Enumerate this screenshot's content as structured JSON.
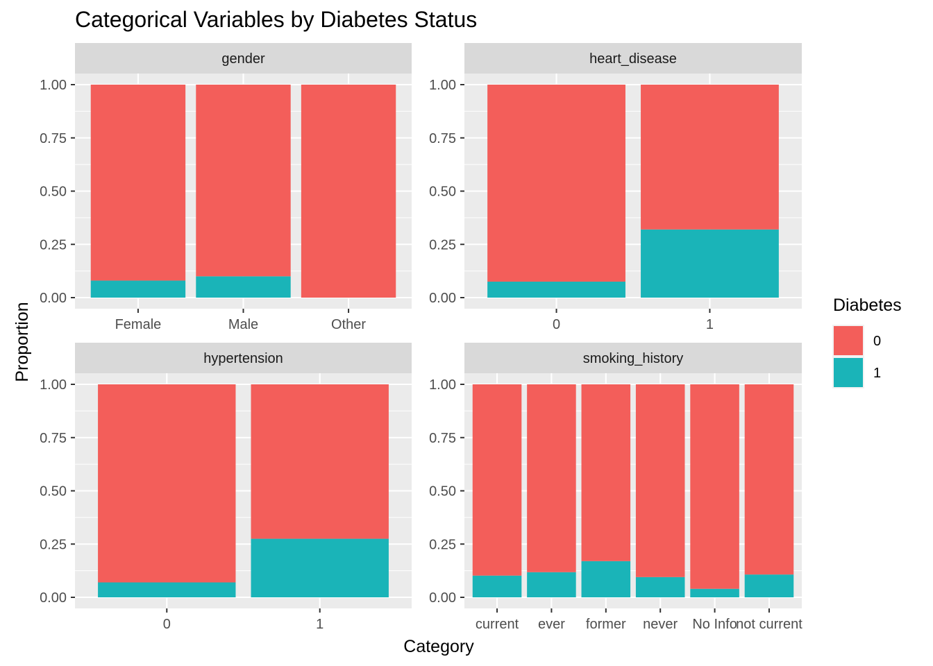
{
  "colors": {
    "0": "#F35E5A",
    "1": "#1AB4B8"
  },
  "chart_data": {
    "type": "bar",
    "stacked": "fill",
    "title": "Categorical Variables by Diabetes Status",
    "xlabel": "Category",
    "ylabel": "Proportion",
    "ylim": [
      0,
      1
    ],
    "yticks": [
      "0.00",
      "0.25",
      "0.50",
      "0.75",
      "1.00"
    ],
    "grid": true,
    "legend": {
      "title": "Diabetes",
      "placement": "right",
      "entries": [
        "0",
        "1"
      ]
    },
    "panels": [
      {
        "facet": "gender",
        "categories": [
          "Female",
          "Male",
          "Other"
        ],
        "series": [
          {
            "name": "0",
            "values": [
              0.92,
              0.9,
              1.0
            ]
          },
          {
            "name": "1",
            "values": [
              0.08,
              0.1,
              0.0
            ]
          }
        ]
      },
      {
        "facet": "heart_disease",
        "categories": [
          "0",
          "1"
        ],
        "series": [
          {
            "name": "0",
            "values": [
              0.925,
              0.68
            ]
          },
          {
            "name": "1",
            "values": [
              0.075,
              0.32
            ]
          }
        ]
      },
      {
        "facet": "hypertension",
        "categories": [
          "0",
          "1"
        ],
        "series": [
          {
            "name": "0",
            "values": [
              0.93,
              0.725
            ]
          },
          {
            "name": "1",
            "values": [
              0.07,
              0.275
            ]
          }
        ]
      },
      {
        "facet": "smoking_history",
        "categories": [
          "current",
          "ever",
          "former",
          "never",
          "No Info",
          "not current"
        ],
        "series": [
          {
            "name": "0",
            "values": [
              0.898,
              0.882,
              0.83,
              0.905,
              0.96,
              0.893
            ]
          },
          {
            "name": "1",
            "values": [
              0.102,
              0.118,
              0.17,
              0.095,
              0.04,
              0.107
            ]
          }
        ]
      }
    ]
  }
}
